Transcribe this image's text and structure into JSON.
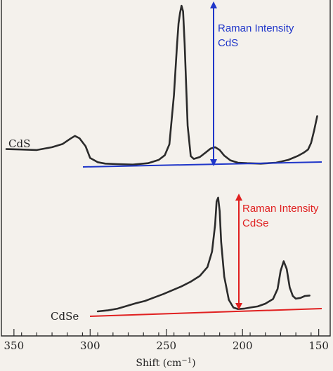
{
  "chart_data": {
    "type": "line",
    "xlabel": "Shift (cm⁻¹)",
    "xlim": [
      355,
      148
    ],
    "x_reversed": true,
    "x_ticks": [
      350,
      300,
      250,
      200,
      150
    ],
    "y_ticks_shown": false,
    "grid": false,
    "series": [
      {
        "name": "CdS",
        "x": [
          355,
          345,
          335,
          325,
          318,
          313,
          310,
          307,
          303,
          300,
          295,
          290,
          282,
          272,
          262,
          255,
          251,
          248,
          245,
          243,
          242,
          241,
          240,
          239,
          238,
          237,
          236,
          234,
          232,
          228,
          224,
          221,
          218,
          215,
          212,
          208,
          203,
          197,
          188,
          178,
          170,
          164,
          160,
          157,
          155,
          153,
          151
        ],
        "values": [
          0.35,
          0.34,
          0.33,
          0.39,
          0.46,
          0.57,
          0.63,
          0.58,
          0.41,
          0.16,
          0.07,
          0.04,
          0.03,
          0.02,
          0.05,
          0.12,
          0.22,
          0.45,
          1.5,
          2.55,
          3.02,
          3.25,
          3.4,
          3.28,
          2.6,
          1.7,
          0.85,
          0.2,
          0.14,
          0.18,
          0.28,
          0.36,
          0.39,
          0.33,
          0.21,
          0.11,
          0.06,
          0.05,
          0.04,
          0.06,
          0.12,
          0.2,
          0.27,
          0.34,
          0.48,
          0.75,
          1.05
        ]
      },
      {
        "name": "CdSe",
        "x": [
          295,
          288,
          282,
          276,
          270,
          264,
          258,
          252,
          246,
          240,
          234,
          228,
          223,
          220,
          218,
          217,
          216,
          215,
          214,
          212,
          209,
          206,
          203,
          199,
          195,
          190,
          185,
          180,
          177,
          175,
          173,
          171,
          169,
          167,
          165,
          162,
          159,
          156
        ],
        "values": [
          0.0,
          0.03,
          0.07,
          0.14,
          0.21,
          0.27,
          0.36,
          0.45,
          0.55,
          0.65,
          0.77,
          0.92,
          1.15,
          1.55,
          2.25,
          2.85,
          2.95,
          2.6,
          1.8,
          0.9,
          0.3,
          0.1,
          0.06,
          0.07,
          0.1,
          0.13,
          0.2,
          0.32,
          0.58,
          1.05,
          1.3,
          1.1,
          0.62,
          0.4,
          0.33,
          0.35,
          0.4,
          0.41
        ]
      }
    ],
    "annotations": [
      {
        "text": "Raman Intensity\nCdS",
        "color": "#1f36c9",
        "arrow_x": 218
      },
      {
        "text": "Raman Intensity\nCdSe",
        "color": "#e02020",
        "arrow_x": 204
      }
    ]
  },
  "labels": {
    "series_cds": "CdS",
    "series_cdse": "CdSe",
    "annot_cds_line1": "Raman Intensity",
    "annot_cds_line2": "CdS",
    "annot_cdse_line1": "Raman Intensity",
    "annot_cdse_line2": "CdSe",
    "x_title_prefix": "Shift (cm",
    "x_title_sup": "−1",
    "x_title_suffix": ")"
  },
  "colors": {
    "background": "#f4f1ec",
    "trace": "#2b2b2b",
    "cds_annotation": "#1f36c9",
    "cdse_annotation": "#e02020"
  }
}
